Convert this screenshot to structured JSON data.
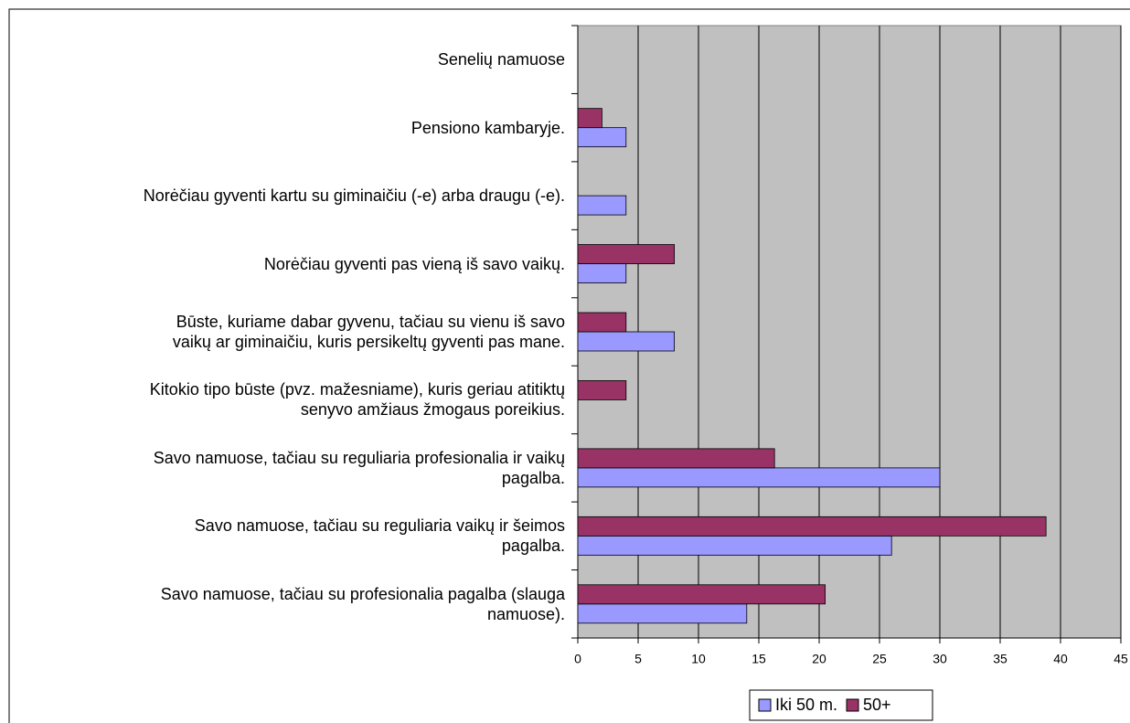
{
  "chart_data": {
    "type": "bar",
    "orientation": "horizontal",
    "categories": [
      "Senelių namuose",
      "Pensiono kambaryje.",
      "Norėčiau gyventi kartu su giminaičiu (-e) arba draugu (-e).",
      "Norėčiau gyventi pas vieną iš savo vaikų.",
      "Būste, kuriame dabar gyvenu, tačiau su vienu iš savo\nvaikų ar giminaičiu, kuris persikeltų gyventi pas mane.",
      "Kitokio tipo būste (pvz. mažesniame), kuris geriau atitiktų\nsenyvo amžiaus žmogaus poreikius.",
      "Savo namuose, tačiau su reguliaria profesionalia ir vaikų\npagalba.",
      "Savo namuose, tačiau su reguliaria vaikų ir šeimos\npagalba.",
      "Savo namuose, tačiau su profesionalia pagalba (slauga\nnamuose)."
    ],
    "series": [
      {
        "name": "Iki 50 m.",
        "color": "#9999ff",
        "values": [
          null,
          4,
          4,
          4,
          8,
          null,
          30,
          26,
          14
        ]
      },
      {
        "name": "50+",
        "color": "#993366",
        "values": [
          null,
          2,
          null,
          8,
          4,
          4,
          16.3,
          38.8,
          20.5
        ]
      }
    ],
    "xlim": [
      0,
      45
    ],
    "xticks": [
      0,
      5,
      10,
      15,
      20,
      25,
      30,
      35,
      40,
      45
    ],
    "grid": true,
    "legend": "bottom"
  }
}
